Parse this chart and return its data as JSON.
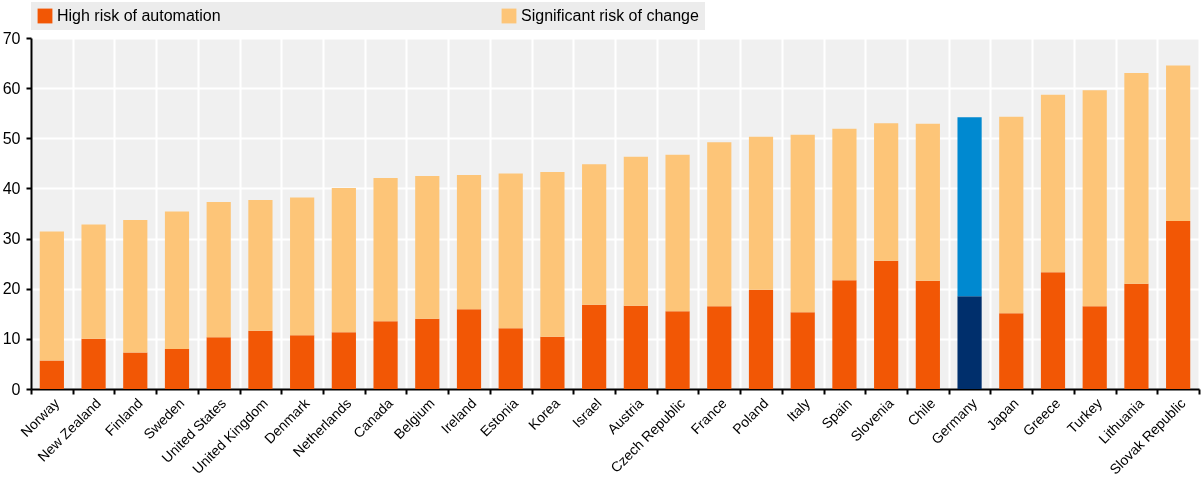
{
  "chart_data": {
    "type": "bar",
    "stacked": true,
    "legend": "top",
    "grid": true,
    "categories": [
      "Norway",
      "New Zealand",
      "Finland",
      "Sweden",
      "United States",
      "United Kingdom",
      "Denmark",
      "Netherlands",
      "Canada",
      "Belgium",
      "Ireland",
      "Estonia",
      "Korea",
      "Israel",
      "Austria",
      "Czech Republic",
      "France",
      "Poland",
      "Italy",
      "Spain",
      "Slovenia",
      "Chile",
      "Germany",
      "Japan",
      "Greece",
      "Turkey",
      "Lithuania",
      "Slovak Republic"
    ],
    "series": [
      {
        "name": "High risk of automation",
        "color": "#f25705",
        "colors": [
          "#f25705",
          "#f25705",
          "#f25705",
          "#f25705",
          "#f25705",
          "#f25705",
          "#f25705",
          "#f25705",
          "#f25705",
          "#f25705",
          "#f25705",
          "#f25705",
          "#f25705",
          "#f25705",
          "#f25705",
          "#f25705",
          "#f25705",
          "#f25705",
          "#f25705",
          "#f25705",
          "#f25705",
          "#f25705",
          "#002f6c",
          "#f25705",
          "#f25705",
          "#f25705",
          "#f25705",
          "#f25705"
        ],
        "values": [
          5.7,
          10.0,
          7.3,
          8.0,
          10.3,
          11.6,
          10.7,
          11.3,
          13.5,
          14.0,
          15.9,
          12.1,
          10.4,
          16.8,
          16.6,
          15.5,
          16.5,
          19.8,
          15.3,
          21.7,
          25.6,
          21.6,
          18.5,
          15.1,
          23.3,
          16.5,
          21.0,
          33.5
        ]
      },
      {
        "name": "Significant risk of change",
        "color": "#fdc578",
        "colors": [
          "#fdc578",
          "#fdc578",
          "#fdc578",
          "#fdc578",
          "#fdc578",
          "#fdc578",
          "#fdc578",
          "#fdc578",
          "#fdc578",
          "#fdc578",
          "#fdc578",
          "#fdc578",
          "#fdc578",
          "#fdc578",
          "#fdc578",
          "#fdc578",
          "#fdc578",
          "#fdc578",
          "#fdc578",
          "#fdc578",
          "#fdc578",
          "#fdc578",
          "#0089d0",
          "#fdc578",
          "#fdc578",
          "#fdc578",
          "#fdc578",
          "#fdc578"
        ],
        "values": [
          25.7,
          22.8,
          26.4,
          27.4,
          27.0,
          26.1,
          27.5,
          28.8,
          28.6,
          28.5,
          26.8,
          30.9,
          32.9,
          28.0,
          29.7,
          31.2,
          32.7,
          30.5,
          35.4,
          30.2,
          27.4,
          31.3,
          35.7,
          39.2,
          35.4,
          43.1,
          42.0,
          31.0
        ]
      }
    ],
    "ylim": [
      0,
      70
    ],
    "yticks": [
      0,
      10,
      20,
      30,
      40,
      50,
      60,
      70
    ]
  }
}
